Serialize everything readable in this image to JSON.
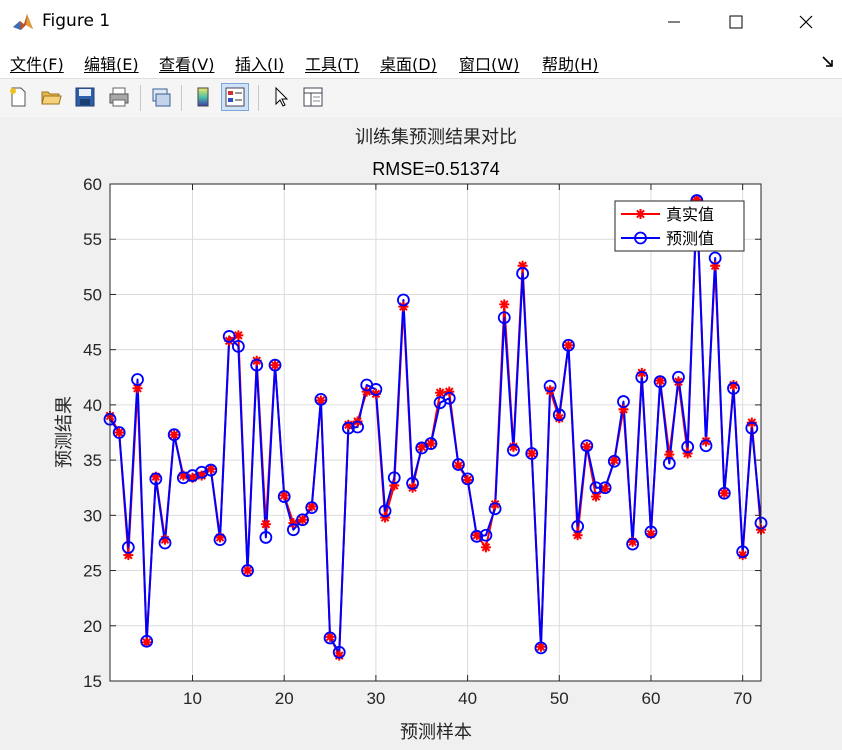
{
  "window": {
    "title": "Figure 1",
    "minimize_icon": "minimize-icon",
    "maximize_icon": "maximize-icon",
    "close_icon": "close-icon",
    "app_icon": "matlab-logo-icon"
  },
  "menu": {
    "items": [
      "文件(F)",
      "编辑(E)",
      "查看(V)",
      "插入(I)",
      "工具(T)",
      "桌面(D)",
      "窗口(W)",
      "帮助(H)"
    ],
    "dock_icon": "dock-arrow-icon"
  },
  "toolbar": {
    "icons": [
      "new-figure-icon",
      "open-file-icon",
      "save-icon",
      "print-icon",
      "link-plot-icon",
      "colorbar-icon",
      "legend-icon",
      "edit-plot-icon",
      "property-inspector-icon"
    ]
  },
  "colors": {
    "true_series": "#ff0000",
    "pred_series": "#0000ff",
    "grid": "#dcdcdc",
    "axes_bg": "#ffffff"
  },
  "chart_data": {
    "type": "line",
    "title": "训练集预测结果对比",
    "subtitle": "RMSE=0.51374",
    "xlabel": "预测样本",
    "ylabel": "预测结果",
    "xlim": [
      1,
      72
    ],
    "ylim": [
      15,
      60
    ],
    "xticks": [
      10,
      20,
      30,
      40,
      50,
      60,
      70
    ],
    "yticks": [
      15,
      20,
      25,
      30,
      35,
      40,
      45,
      50,
      55,
      60
    ],
    "grid": true,
    "legend_position": "top-right",
    "x": [
      1,
      2,
      3,
      4,
      5,
      6,
      7,
      8,
      9,
      10,
      11,
      12,
      13,
      14,
      15,
      16,
      17,
      18,
      19,
      20,
      21,
      22,
      23,
      24,
      25,
      26,
      27,
      28,
      29,
      30,
      31,
      32,
      33,
      34,
      35,
      36,
      37,
      38,
      39,
      40,
      41,
      42,
      43,
      44,
      45,
      46,
      47,
      48,
      49,
      50,
      51,
      52,
      53,
      54,
      55,
      56,
      57,
      58,
      59,
      60,
      61,
      62,
      63,
      64,
      65,
      66,
      67,
      68,
      69,
      70,
      71,
      72
    ],
    "series": [
      {
        "name": "真实值",
        "marker": "asterisk",
        "values": [
          39.0,
          37.5,
          26.4,
          41.5,
          18.5,
          33.5,
          27.8,
          37.3,
          33.6,
          33.4,
          33.6,
          34.2,
          28.0,
          45.8,
          46.3,
          25.0,
          44.0,
          29.2,
          43.6,
          31.8,
          29.3,
          29.6,
          30.8,
          40.4,
          19.0,
          17.3,
          38.2,
          38.5,
          41.2,
          41.0,
          29.8,
          32.7,
          48.9,
          32.5,
          36.2,
          36.5,
          41.1,
          41.2,
          34.5,
          33.2,
          28.2,
          27.1,
          31.0,
          49.1,
          36.2,
          52.6,
          35.6,
          18.1,
          41.3,
          38.8,
          45.4,
          28.2,
          36.2,
          31.7,
          32.4,
          35.0,
          39.6,
          27.6,
          42.9,
          28.3,
          42.2,
          35.5,
          42.1,
          35.6,
          58.6,
          36.7,
          52.6,
          32.0,
          41.8,
          26.4,
          38.4,
          28.7
        ]
      },
      {
        "name": "预测值",
        "marker": "circle",
        "values": [
          38.7,
          37.5,
          27.1,
          42.3,
          18.6,
          33.3,
          27.5,
          37.3,
          33.4,
          33.6,
          33.9,
          34.1,
          27.8,
          46.2,
          45.3,
          25.0,
          43.6,
          28.0,
          43.6,
          31.7,
          28.7,
          29.6,
          30.7,
          40.5,
          18.9,
          17.6,
          37.9,
          38.0,
          41.8,
          41.4,
          30.4,
          33.4,
          49.5,
          32.9,
          36.1,
          36.5,
          40.2,
          40.6,
          34.6,
          33.3,
          28.1,
          28.2,
          30.6,
          47.9,
          35.9,
          51.9,
          35.6,
          18.0,
          41.7,
          39.1,
          45.4,
          29.0,
          36.3,
          32.5,
          32.5,
          34.9,
          40.3,
          27.4,
          42.5,
          28.5,
          42.1,
          34.7,
          42.5,
          36.2,
          58.5,
          36.3,
          53.3,
          32.0,
          41.5,
          26.7,
          37.9,
          29.3
        ]
      }
    ]
  }
}
